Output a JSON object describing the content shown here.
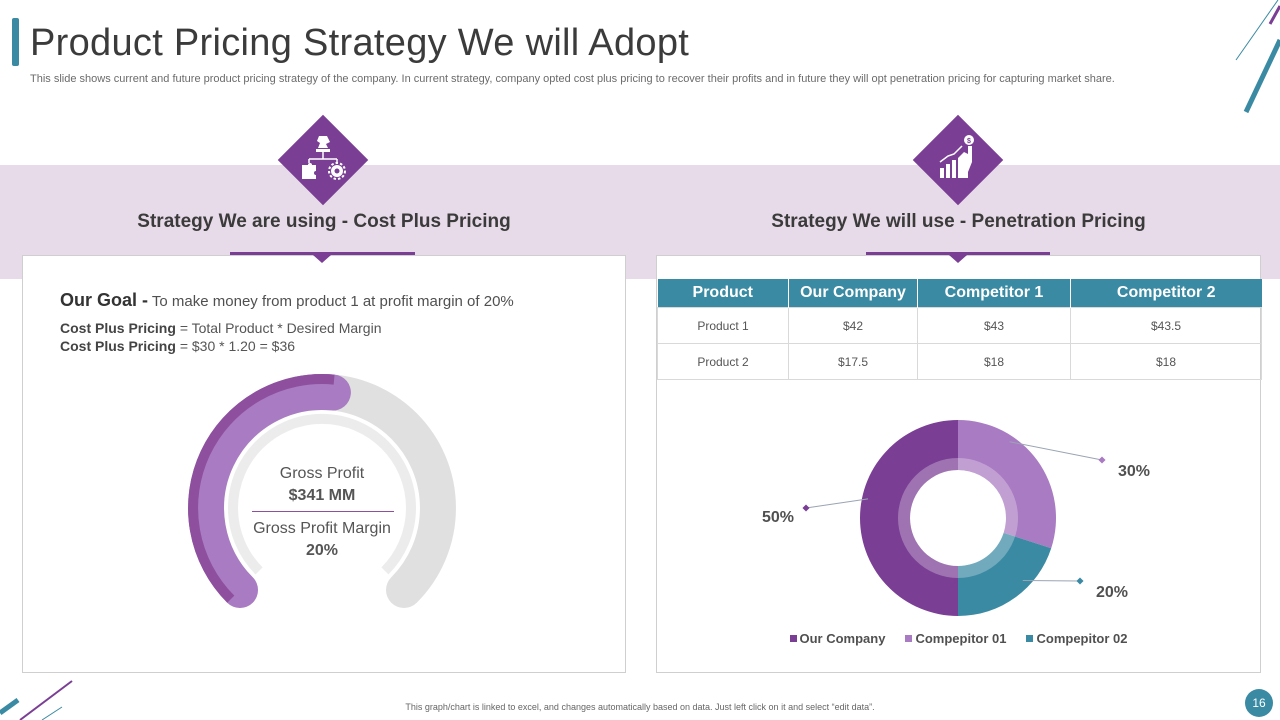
{
  "header": {
    "title": "Product Pricing Strategy We will Adopt",
    "subtitle": "This slide shows current and future product pricing strategy of the company. In current strategy, company opted cost plus pricing to recover their profits and in future they will opt penetration pricing for capturing market share."
  },
  "colors": {
    "purple_dark": "#7a3e94",
    "purple_mid": "#8d4f9e",
    "purple_light": "#a97bc2",
    "teal": "#3a8aa3",
    "band": "#e8dbe9",
    "gray_arc": "#e0e0e0"
  },
  "left": {
    "icon": "chess-knight-strategy-icon",
    "heading": "Strategy We are using - Cost Plus Pricing",
    "goal_label": "Our Goal -",
    "goal_text": "To make money from product 1 at profit margin of 20%",
    "formula1_label": "Cost Plus Pricing",
    "formula1_text": "= Total Product * Desired Margin",
    "formula2_label": "Cost Plus Pricing",
    "formula2_text": "= $30 * 1.20 = $36",
    "gross_profit_label": "Gross Profit",
    "gross_profit_value": "$341 MM",
    "margin_label": "Gross Profit Margin",
    "margin_value": "20%"
  },
  "right": {
    "icon": "growth-chart-hand-icon",
    "heading": "Strategy We will use - Penetration Pricing",
    "table": {
      "headers": [
        "Product",
        "Our Company",
        "Competitor 1",
        "Competitor 2"
      ],
      "rows": [
        [
          "Product 1",
          "$42",
          "$43",
          "$43.5"
        ],
        [
          "Product 2",
          "$17.5",
          "$18",
          "$18"
        ]
      ]
    }
  },
  "chart_data": [
    {
      "type": "gauge",
      "title": "Gross Profit Margin",
      "value": 20,
      "unit": "%",
      "labels": [
        "Gross Profit",
        "$341 MM",
        "Gross Profit Margin",
        "20%"
      ]
    },
    {
      "type": "pie",
      "variant": "donut",
      "series": [
        {
          "name": "Our Company",
          "value": 50,
          "label": "50%",
          "color": "#7a3e94"
        },
        {
          "name": "Compepitor 01",
          "value": 30,
          "label": "30%",
          "color": "#a97bc2"
        },
        {
          "name": "Compepitor 02",
          "value": 20,
          "label": "20%",
          "color": "#3a8aa3"
        }
      ],
      "legend_position": "bottom"
    }
  ],
  "footer": {
    "note": "This graph/chart is linked to excel, and changes automatically based on data. Just left click on it and select “edit data”.",
    "page_number": "16"
  }
}
